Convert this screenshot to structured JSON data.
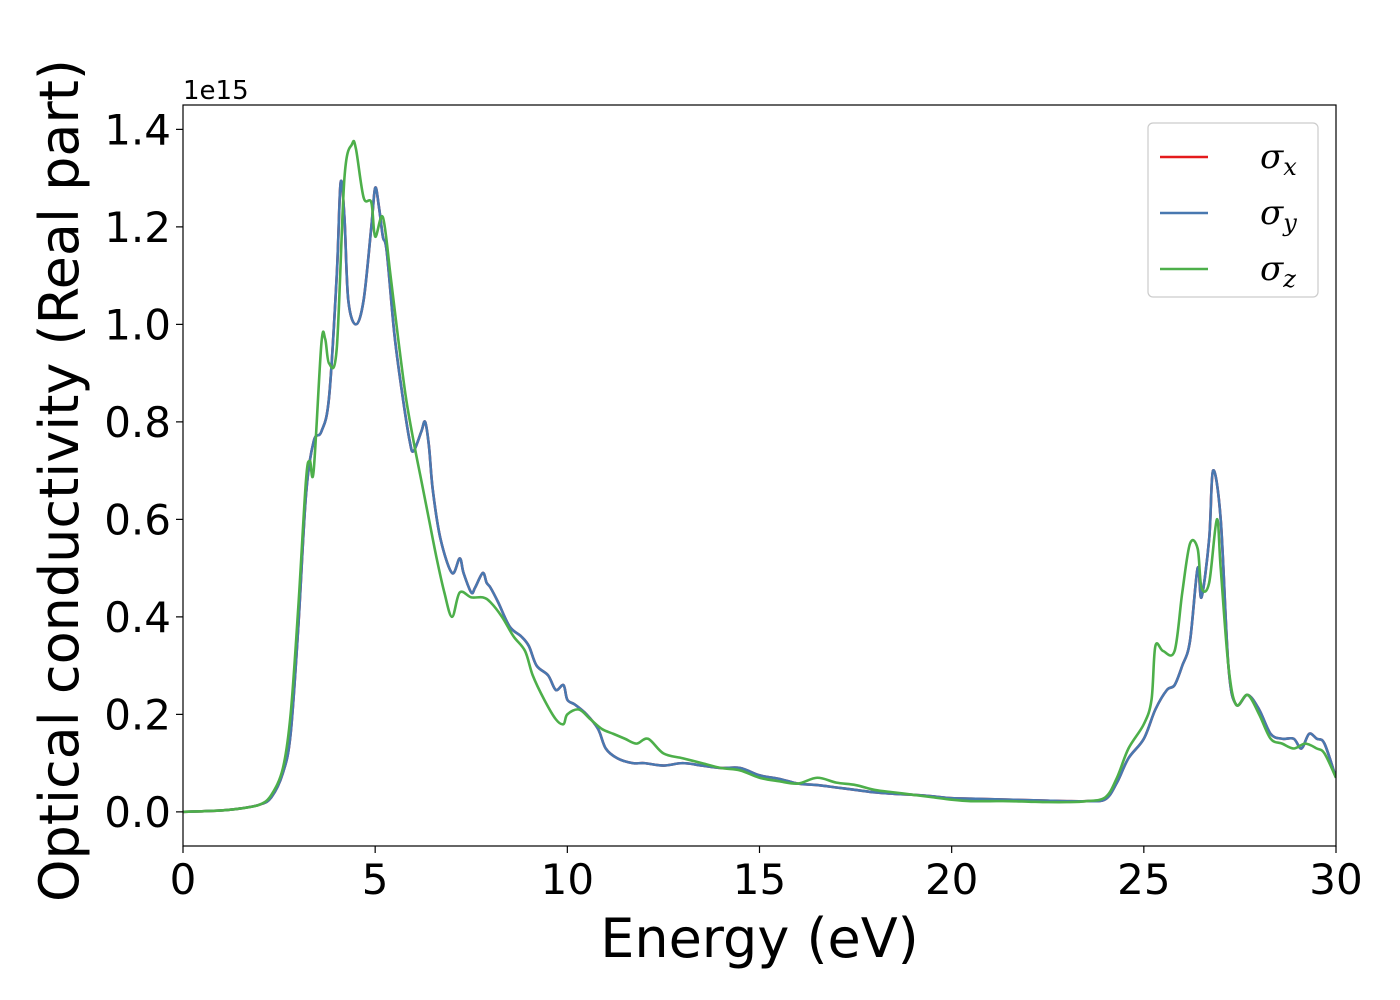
{
  "chart_data": {
    "type": "line",
    "title": "",
    "xlabel": "Energy (eV)",
    "ylabel": "Optical conductivity (Real part)",
    "y_offset_label": "1e15",
    "y_scale_factor": 1000000000000000.0,
    "xlim": [
      0,
      30
    ],
    "ylim": [
      -0.07,
      1.45
    ],
    "xticks": [
      0,
      5,
      10,
      15,
      20,
      25,
      30
    ],
    "xtick_labels": [
      "0",
      "5",
      "10",
      "15",
      "20",
      "25",
      "30"
    ],
    "yticks": [
      0.0,
      0.2,
      0.4,
      0.6,
      0.8,
      1.0,
      1.2,
      1.4
    ],
    "ytick_labels": [
      "0.0",
      "0.2",
      "0.4",
      "0.6",
      "0.8",
      "1.0",
      "1.2",
      "1.4"
    ],
    "grid": false,
    "legend_position": "top-right",
    "series": [
      {
        "name": "σx",
        "legend_base": "σ",
        "legend_sub": "x",
        "color": "#e41a1c",
        "x": [
          0,
          1,
          1.5,
          2,
          2.3,
          2.6,
          2.8,
          3.0,
          3.2,
          3.4,
          3.6,
          3.8,
          4.0,
          4.1,
          4.2,
          4.3,
          4.5,
          4.7,
          4.9,
          5.0,
          5.1,
          5.2,
          5.3,
          5.5,
          5.7,
          5.9,
          6.0,
          6.2,
          6.3,
          6.4,
          6.5,
          6.7,
          7.0,
          7.2,
          7.3,
          7.5,
          7.6,
          7.8,
          7.9,
          8.0,
          8.2,
          8.5,
          8.8,
          9.0,
          9.2,
          9.5,
          9.7,
          9.9,
          10.0,
          10.2,
          10.5,
          10.8,
          11.0,
          11.3,
          11.7,
          12.0,
          12.5,
          13.0,
          13.5,
          14.0,
          14.5,
          15.0,
          15.5,
          16.0,
          16.5,
          17.0,
          17.5,
          18.0,
          18.5,
          19.0,
          19.5,
          20.0,
          20.5,
          21.0,
          21.5,
          22.0,
          22.5,
          23.0,
          23.5,
          24.0,
          24.3,
          24.6,
          25.0,
          25.3,
          25.6,
          25.8,
          26.0,
          26.2,
          26.4,
          26.5,
          26.7,
          26.8,
          27.0,
          27.2,
          27.4,
          27.7,
          28.0,
          28.3,
          28.6,
          28.9,
          29.1,
          29.3,
          29.5,
          29.7,
          30.0
        ],
        "values": [
          0,
          0.003,
          0.007,
          0.015,
          0.03,
          0.08,
          0.16,
          0.38,
          0.65,
          0.76,
          0.78,
          0.85,
          1.1,
          1.29,
          1.22,
          1.05,
          1.0,
          1.05,
          1.2,
          1.28,
          1.24,
          1.18,
          1.15,
          0.98,
          0.86,
          0.76,
          0.74,
          0.78,
          0.8,
          0.75,
          0.66,
          0.56,
          0.49,
          0.52,
          0.49,
          0.45,
          0.46,
          0.49,
          0.47,
          0.46,
          0.43,
          0.38,
          0.36,
          0.34,
          0.3,
          0.28,
          0.25,
          0.26,
          0.23,
          0.22,
          0.2,
          0.17,
          0.13,
          0.11,
          0.1,
          0.1,
          0.095,
          0.1,
          0.095,
          0.09,
          0.09,
          0.075,
          0.068,
          0.058,
          0.055,
          0.05,
          0.045,
          0.04,
          0.037,
          0.035,
          0.032,
          0.028,
          0.027,
          0.026,
          0.025,
          0.024,
          0.023,
          0.022,
          0.022,
          0.026,
          0.06,
          0.11,
          0.15,
          0.21,
          0.25,
          0.26,
          0.3,
          0.35,
          0.5,
          0.44,
          0.56,
          0.7,
          0.6,
          0.3,
          0.22,
          0.24,
          0.21,
          0.16,
          0.15,
          0.15,
          0.13,
          0.16,
          0.15,
          0.14,
          0.07
        ]
      },
      {
        "name": "σy",
        "legend_base": "σ",
        "legend_sub": "y",
        "color": "#4878b0",
        "x": [
          0,
          1,
          1.5,
          2,
          2.3,
          2.6,
          2.8,
          3.0,
          3.2,
          3.4,
          3.6,
          3.8,
          4.0,
          4.1,
          4.2,
          4.3,
          4.5,
          4.7,
          4.9,
          5.0,
          5.1,
          5.2,
          5.3,
          5.5,
          5.7,
          5.9,
          6.0,
          6.2,
          6.3,
          6.4,
          6.5,
          6.7,
          7.0,
          7.2,
          7.3,
          7.5,
          7.6,
          7.8,
          7.9,
          8.0,
          8.2,
          8.5,
          8.8,
          9.0,
          9.2,
          9.5,
          9.7,
          9.9,
          10.0,
          10.2,
          10.5,
          10.8,
          11.0,
          11.3,
          11.7,
          12.0,
          12.5,
          13.0,
          13.5,
          14.0,
          14.5,
          15.0,
          15.5,
          16.0,
          16.5,
          17.0,
          17.5,
          18.0,
          18.5,
          19.0,
          19.5,
          20.0,
          20.5,
          21.0,
          21.5,
          22.0,
          22.5,
          23.0,
          23.5,
          24.0,
          24.3,
          24.6,
          25.0,
          25.3,
          25.6,
          25.8,
          26.0,
          26.2,
          26.4,
          26.5,
          26.7,
          26.8,
          27.0,
          27.2,
          27.4,
          27.7,
          28.0,
          28.3,
          28.6,
          28.9,
          29.1,
          29.3,
          29.5,
          29.7,
          30.0
        ],
        "values": [
          0,
          0.003,
          0.007,
          0.015,
          0.03,
          0.08,
          0.16,
          0.38,
          0.65,
          0.76,
          0.78,
          0.85,
          1.1,
          1.29,
          1.22,
          1.05,
          1.0,
          1.05,
          1.2,
          1.28,
          1.24,
          1.18,
          1.15,
          0.98,
          0.86,
          0.76,
          0.74,
          0.78,
          0.8,
          0.75,
          0.66,
          0.56,
          0.49,
          0.52,
          0.49,
          0.45,
          0.46,
          0.49,
          0.47,
          0.46,
          0.43,
          0.38,
          0.36,
          0.34,
          0.3,
          0.28,
          0.25,
          0.26,
          0.23,
          0.22,
          0.2,
          0.17,
          0.13,
          0.11,
          0.1,
          0.1,
          0.095,
          0.1,
          0.095,
          0.09,
          0.09,
          0.075,
          0.068,
          0.058,
          0.055,
          0.05,
          0.045,
          0.04,
          0.037,
          0.035,
          0.032,
          0.028,
          0.027,
          0.026,
          0.025,
          0.024,
          0.023,
          0.022,
          0.022,
          0.026,
          0.06,
          0.11,
          0.15,
          0.21,
          0.25,
          0.26,
          0.3,
          0.35,
          0.5,
          0.44,
          0.56,
          0.7,
          0.6,
          0.3,
          0.22,
          0.24,
          0.21,
          0.16,
          0.15,
          0.15,
          0.13,
          0.16,
          0.15,
          0.14,
          0.07
        ]
      },
      {
        "name": "σz",
        "legend_base": "σ",
        "legend_sub": "z",
        "color": "#4daf4a",
        "x": [
          0,
          1,
          1.5,
          2,
          2.3,
          2.6,
          2.8,
          3.0,
          3.2,
          3.3,
          3.4,
          3.6,
          3.7,
          3.8,
          4.0,
          4.2,
          4.4,
          4.5,
          4.7,
          4.9,
          5.0,
          5.2,
          5.4,
          5.6,
          5.8,
          6.0,
          6.2,
          6.4,
          6.6,
          6.8,
          7.0,
          7.2,
          7.5,
          7.8,
          8.0,
          8.3,
          8.6,
          8.9,
          9.1,
          9.4,
          9.7,
          9.9,
          10.0,
          10.3,
          10.6,
          10.9,
          11.2,
          11.5,
          11.8,
          12.1,
          12.5,
          13.0,
          13.5,
          14.0,
          14.5,
          15.0,
          15.5,
          16.0,
          16.5,
          17.0,
          17.5,
          18.0,
          18.5,
          19.0,
          19.5,
          20.0,
          20.5,
          21.0,
          21.5,
          22.0,
          22.5,
          23.0,
          23.5,
          24.0,
          24.3,
          24.6,
          25.0,
          25.2,
          25.3,
          25.5,
          25.8,
          26.0,
          26.2,
          26.4,
          26.5,
          26.7,
          26.9,
          27.0,
          27.2,
          27.4,
          27.7,
          28.0,
          28.3,
          28.6,
          28.9,
          29.2,
          29.5,
          29.7,
          30.0
        ],
        "values": [
          0,
          0.003,
          0.007,
          0.015,
          0.035,
          0.09,
          0.2,
          0.42,
          0.68,
          0.72,
          0.7,
          0.96,
          0.97,
          0.92,
          0.95,
          1.3,
          1.37,
          1.36,
          1.26,
          1.25,
          1.18,
          1.22,
          1.1,
          0.97,
          0.85,
          0.76,
          0.68,
          0.6,
          0.52,
          0.45,
          0.4,
          0.45,
          0.44,
          0.44,
          0.43,
          0.4,
          0.36,
          0.33,
          0.28,
          0.23,
          0.19,
          0.18,
          0.2,
          0.21,
          0.19,
          0.17,
          0.16,
          0.15,
          0.14,
          0.15,
          0.12,
          0.11,
          0.1,
          0.09,
          0.085,
          0.07,
          0.063,
          0.058,
          0.07,
          0.06,
          0.055,
          0.045,
          0.04,
          0.035,
          0.03,
          0.025,
          0.022,
          0.022,
          0.022,
          0.021,
          0.02,
          0.02,
          0.022,
          0.03,
          0.07,
          0.13,
          0.18,
          0.23,
          0.34,
          0.33,
          0.33,
          0.45,
          0.55,
          0.54,
          0.46,
          0.47,
          0.6,
          0.5,
          0.3,
          0.22,
          0.24,
          0.2,
          0.15,
          0.14,
          0.13,
          0.14,
          0.13,
          0.12,
          0.07
        ]
      }
    ]
  }
}
